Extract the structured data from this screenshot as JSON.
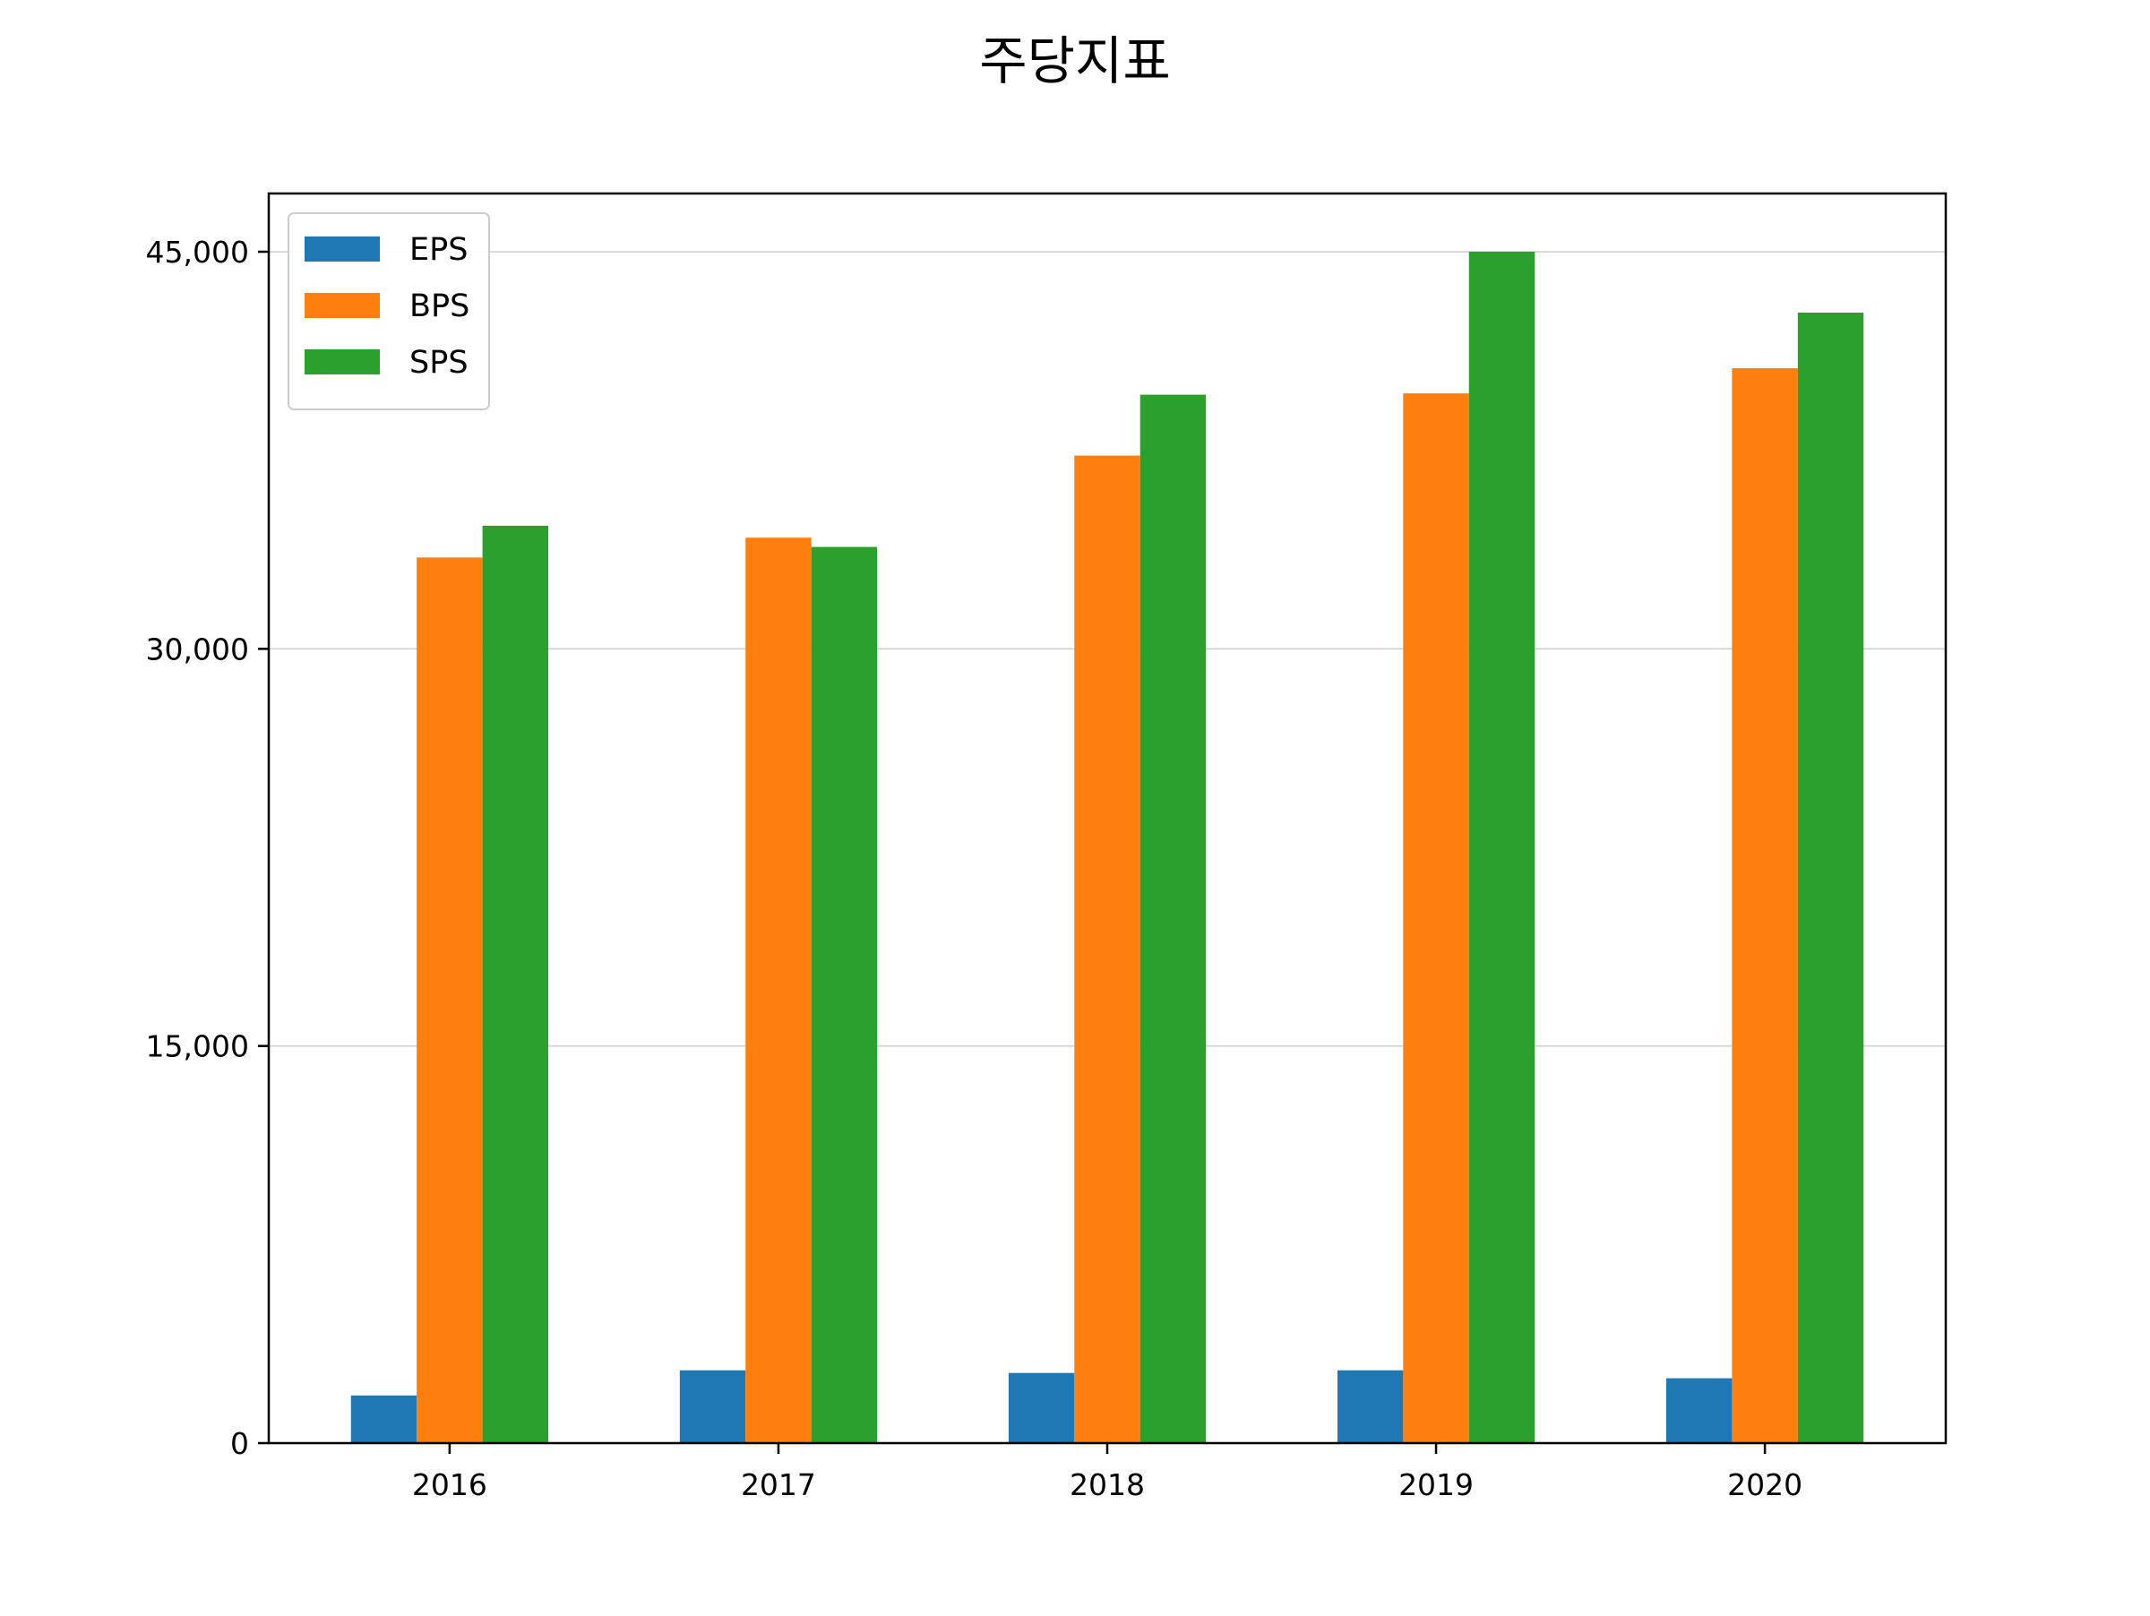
{
  "chart_data": {
    "type": "bar",
    "title": "주당지표",
    "xlabel": "",
    "ylabel": "",
    "categories": [
      "2016",
      "2017",
      "2018",
      "2019",
      "2020"
    ],
    "series": [
      {
        "name": "EPS",
        "color": "#1f77b4",
        "values": [
          1800,
          2750,
          2650,
          2750,
          2450
        ]
      },
      {
        "name": "BPS",
        "color": "#ff7f0e",
        "values": [
          33450,
          34200,
          37300,
          39650,
          40600
        ]
      },
      {
        "name": "SPS",
        "color": "#2ca02c",
        "values": [
          34650,
          33850,
          39600,
          45000,
          42700
        ]
      }
    ],
    "ylim": [
      0,
      47200
    ],
    "yticks": [
      0,
      15000,
      30000,
      45000
    ],
    "ytick_labels": [
      "0",
      "15,000",
      "30,000",
      "45,000"
    ],
    "grid": "horizontal",
    "legend_position": "top-left"
  }
}
